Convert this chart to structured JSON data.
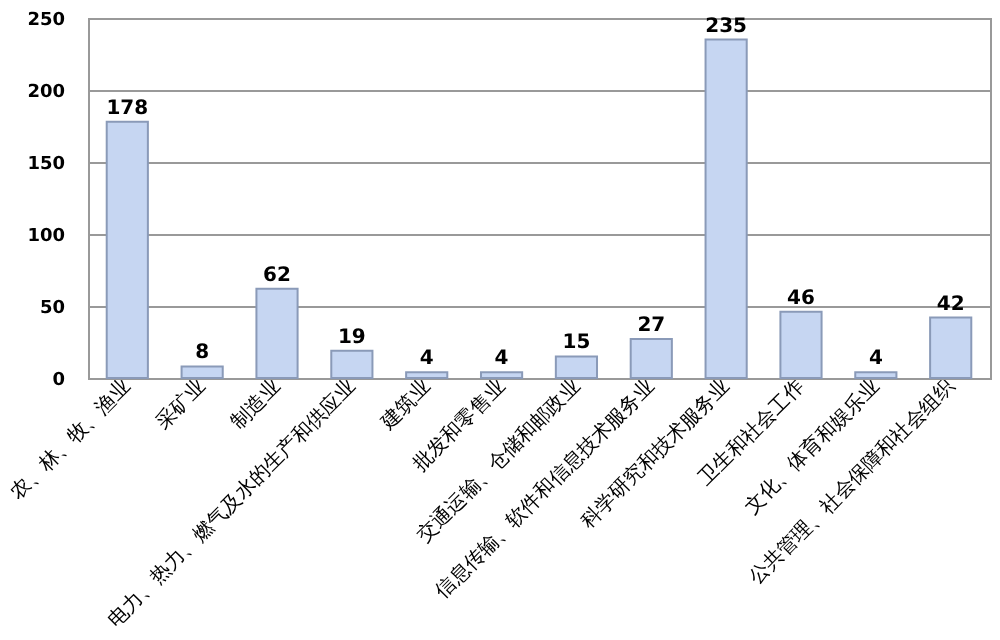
{
  "chart_data": {
    "type": "bar",
    "categories": [
      "农、林、牧、渔业",
      "采矿业",
      "制造业",
      "电力、热力、燃气及水的生产和供应业",
      "建筑业",
      "批发和零售业",
      "交通运输、仓储和邮政业",
      "信息传输、软件和信息技术服务业",
      "科学研究和技术服务业",
      "卫生和社会工作",
      "文化、体育和娱乐业",
      "公共管理、社会保障和社会组织"
    ],
    "values": [
      178,
      8,
      62,
      19,
      4,
      4,
      15,
      27,
      235,
      46,
      4,
      42
    ],
    "color": "#c6d6f2",
    "ylim": [
      0,
      250
    ],
    "yticks": [
      0,
      50,
      100,
      150,
      200,
      250
    ],
    "grid": "y",
    "data_labels": true
  }
}
